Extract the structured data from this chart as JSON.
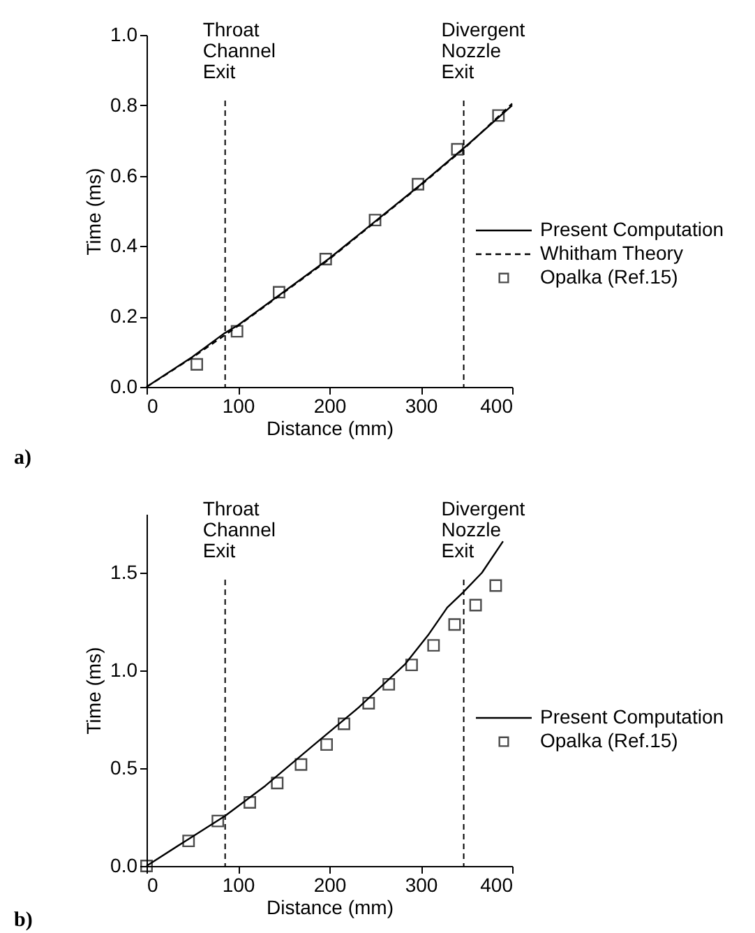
{
  "chart_data": [
    {
      "type": "line",
      "title": "a)",
      "xlabel": "Distance (mm)",
      "ylabel": "Time (ms)",
      "xlim": [
        0,
        400
      ],
      "xticks": [
        0,
        100,
        200,
        300,
        400
      ],
      "ylim": [
        0,
        1.0
      ],
      "yticks": [
        {
          "value": 0,
          "label": "0.0"
        },
        {
          "value": 0.2,
          "label": "0.2"
        },
        {
          "value": 0.4,
          "label": "0.4"
        },
        {
          "value": 0.6,
          "label": "0.6"
        },
        {
          "value": 0.8,
          "label": "0.8"
        },
        {
          "value": 1.0,
          "label": "1.0"
        }
      ],
      "legend": "right",
      "grid": false,
      "ref_lines": [
        {
          "axis": "x",
          "value": 86,
          "label": "Throat Channel Exit",
          "line_style": "dashed"
        },
        {
          "axis": "x",
          "value": 347,
          "label": "Divergent Nozzle Exit",
          "line_style": "dashed"
        }
      ],
      "series": [
        {
          "name": "Present Computation",
          "type": "line",
          "color": "#000000",
          "line_style": "solid",
          "x": [
            0,
            50,
            85,
            100,
            150,
            200,
            250,
            300,
            350,
            400
          ],
          "values": [
            0,
            0.085,
            0.152,
            0.175,
            0.27,
            0.365,
            0.47,
            0.575,
            0.685,
            0.8
          ]
        },
        {
          "name": "Whitham Theory",
          "type": "line",
          "color": "#000000",
          "line_style": "dashed",
          "x": [
            0,
            50,
            100,
            150,
            200,
            250,
            300,
            350,
            400
          ],
          "values": [
            0,
            0.083,
            0.173,
            0.268,
            0.363,
            0.468,
            0.573,
            0.683,
            0.805
          ]
        },
        {
          "name": "Opalka (Ref.15)",
          "type": "scatter",
          "color": "#000000",
          "marker": "square",
          "x": [
            55,
            99,
            145,
            196,
            250,
            297,
            340,
            385
          ],
          "values": [
            0.064,
            0.158,
            0.269,
            0.363,
            0.474,
            0.576,
            0.675,
            0.771
          ]
        }
      ]
    },
    {
      "type": "line",
      "title": "b)",
      "xlabel": "Distance (mm)",
      "ylabel": "Time (ms)",
      "xlim": [
        0,
        400
      ],
      "xticks": [
        0,
        100,
        200,
        300,
        400
      ],
      "ylim": [
        0,
        1.8
      ],
      "yticks": [
        {
          "value": 0,
          "label": "0.0"
        },
        {
          "value": 0.5,
          "label": "0.5"
        },
        {
          "value": 1.0,
          "label": "1.0"
        },
        {
          "value": 1.5,
          "label": "1.5"
        }
      ],
      "legend": "right",
      "grid": false,
      "ref_lines": [
        {
          "axis": "x",
          "value": 86,
          "label": "Throat Channel Exit",
          "line_style": "dashed"
        },
        {
          "axis": "x",
          "value": 347,
          "label": "Divergent Nozzle Exit",
          "line_style": "dashed"
        }
      ],
      "series": [
        {
          "name": "Present Computation",
          "type": "line",
          "color": "#000000",
          "line_style": "solid",
          "x": [
            0,
            40,
            86,
            130,
            181,
            232,
            283,
            308,
            329,
            346,
            367,
            390
          ],
          "values": [
            0,
            0.12,
            0.256,
            0.41,
            0.611,
            0.81,
            1.033,
            1.18,
            1.322,
            1.398,
            1.5,
            1.66
          ]
        },
        {
          "name": "Opalka (Ref.15)",
          "type": "scatter",
          "color": "#000000",
          "marker": "square",
          "x": [
            0,
            46,
            78,
            113,
            143,
            169,
            197,
            216,
            243,
            265,
            290,
            314,
            337,
            360,
            382
          ],
          "values": [
            0,
            0.128,
            0.23,
            0.325,
            0.424,
            0.519,
            0.621,
            0.727,
            0.832,
            0.929,
            1.028,
            1.128,
            1.235,
            1.334,
            1.434
          ]
        }
      ]
    }
  ]
}
